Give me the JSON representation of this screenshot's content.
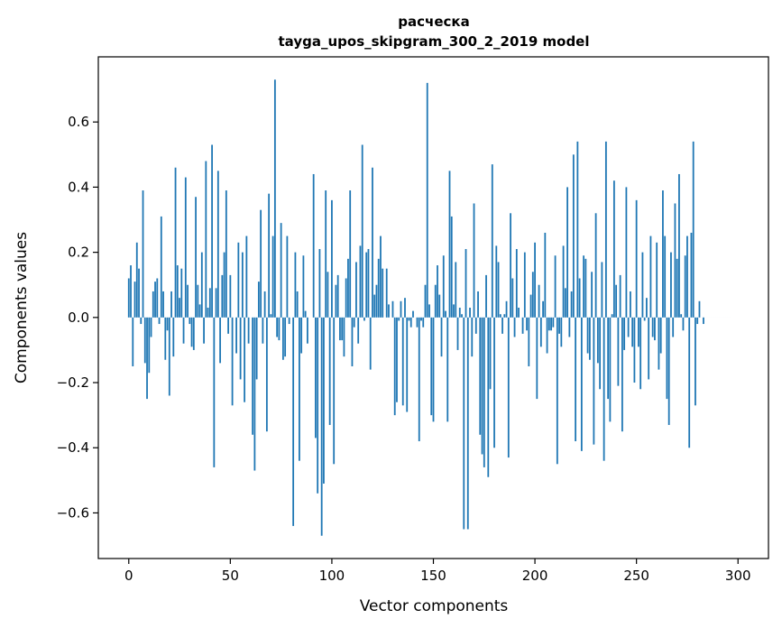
{
  "chart_data": {
    "type": "bar",
    "title": "расческа",
    "subtitle": "tayga_upos_skipgram_300_2_2019 model",
    "xlabel": "Vector components",
    "ylabel": "Components values",
    "xlim": [
      -15,
      315
    ],
    "ylim": [
      -0.74,
      0.8
    ],
    "xticks": [
      0,
      50,
      100,
      150,
      200,
      250,
      300
    ],
    "yticks": [
      -0.6,
      -0.4,
      -0.2,
      0.0,
      0.2,
      0.4,
      0.6
    ],
    "ytick_labels": [
      "−0.6",
      "−0.4",
      "−0.2",
      "0.0",
      "0.2",
      "0.4",
      "0.6"
    ],
    "color": "#1f77b4",
    "grid": false,
    "x": "0..299",
    "values": [
      0.12,
      0.16,
      -0.15,
      0.11,
      0.23,
      0.15,
      -0.02,
      0.39,
      -0.14,
      -0.25,
      -0.17,
      -0.06,
      0.08,
      0.11,
      0.12,
      -0.02,
      0.31,
      0.08,
      -0.13,
      -0.04,
      -0.24,
      0.08,
      -0.12,
      0.46,
      0.16,
      0.06,
      0.15,
      -0.08,
      0.43,
      0.1,
      -0.02,
      -0.09,
      -0.1,
      0.37,
      0.1,
      0.04,
      0.2,
      -0.08,
      0.48,
      0.03,
      0.09,
      0.53,
      -0.46,
      0.09,
      0.45,
      -0.14,
      0.13,
      0.2,
      0.39,
      -0.05,
      0.13,
      -0.27,
      0.0,
      -0.11,
      0.23,
      -0.19,
      0.2,
      -0.26,
      0.25,
      -0.08,
      0.0,
      -0.36,
      -0.47,
      -0.19,
      0.11,
      0.33,
      -0.08,
      0.08,
      -0.35,
      0.38,
      0.01,
      0.25,
      0.73,
      -0.06,
      -0.07,
      0.29,
      -0.13,
      -0.12,
      0.25,
      -0.02,
      0.0,
      -0.64,
      0.2,
      0.08,
      -0.44,
      -0.11,
      0.19,
      0.02,
      -0.08,
      0.0,
      0.0,
      0.44,
      -0.37,
      -0.54,
      0.21,
      -0.67,
      -0.51,
      0.39,
      0.14,
      -0.33,
      0.36,
      -0.45,
      0.1,
      0.13,
      -0.07,
      -0.07,
      -0.12,
      0.12,
      0.18,
      0.39,
      -0.15,
      -0.03,
      0.17,
      -0.08,
      0.22,
      0.53,
      -0.01,
      0.2,
      0.21,
      -0.16,
      0.46,
      0.07,
      0.1,
      0.18,
      0.25,
      0.15,
      0.0,
      0.15,
      0.04,
      0.0,
      0.05,
      -0.3,
      -0.26,
      -0.01,
      0.05,
      -0.27,
      0.06,
      -0.29,
      -0.01,
      -0.03,
      0.02,
      0.0,
      -0.03,
      -0.38,
      -0.01,
      -0.03,
      0.1,
      0.72,
      0.04,
      -0.3,
      -0.32,
      0.1,
      0.16,
      0.07,
      -0.12,
      0.19,
      0.02,
      -0.32,
      0.45,
      0.31,
      0.04,
      0.17,
      -0.1,
      0.03,
      0.01,
      -0.65,
      0.21,
      -0.65,
      0.03,
      -0.12,
      0.35,
      -0.05,
      0.08,
      -0.36,
      -0.42,
      -0.46,
      0.13,
      -0.49,
      -0.22,
      0.47,
      -0.4,
      0.22,
      0.17,
      0.01,
      -0.05,
      0.01,
      0.05,
      -0.43,
      0.32,
      0.12,
      -0.06,
      0.21,
      0.03,
      0.0,
      -0.05,
      0.2,
      -0.04,
      -0.15,
      0.07,
      0.14,
      0.23,
      -0.25,
      0.1,
      -0.09,
      0.05,
      0.26,
      -0.11,
      -0.04,
      -0.04,
      -0.03,
      0.19,
      -0.45,
      -0.05,
      -0.09,
      0.22,
      0.09,
      0.4,
      -0.06,
      0.08,
      0.5,
      -0.38,
      0.54,
      0.12,
      -0.41,
      0.19,
      0.18,
      -0.11,
      -0.13,
      0.14,
      -0.39,
      0.32,
      -0.14,
      -0.22,
      0.17,
      -0.44,
      0.54,
      -0.25,
      -0.32,
      0.01,
      0.42,
      0.1,
      -0.21,
      0.13,
      -0.35,
      -0.1,
      0.4,
      -0.06,
      0.08,
      -0.09,
      -0.2,
      0.36,
      -0.09,
      -0.22,
      0.2,
      -0.01,
      0.06,
      -0.19,
      0.25,
      -0.06,
      -0.07,
      0.23,
      -0.16,
      -0.11,
      0.39,
      0.25,
      -0.25,
      -0.33,
      0.2,
      -0.06,
      0.35,
      0.18,
      0.44,
      0.01,
      -0.04,
      0.19,
      0.25,
      -0.4,
      0.26,
      0.54,
      -0.27,
      -0.02,
      0.05,
      0.0,
      -0.02,
      0.0,
      0.0,
      0.0,
      0.0,
      0.0,
      0.0,
      0.0,
      0.0,
      0.0,
      0.0,
      0.0,
      0.0,
      0.0
    ]
  }
}
